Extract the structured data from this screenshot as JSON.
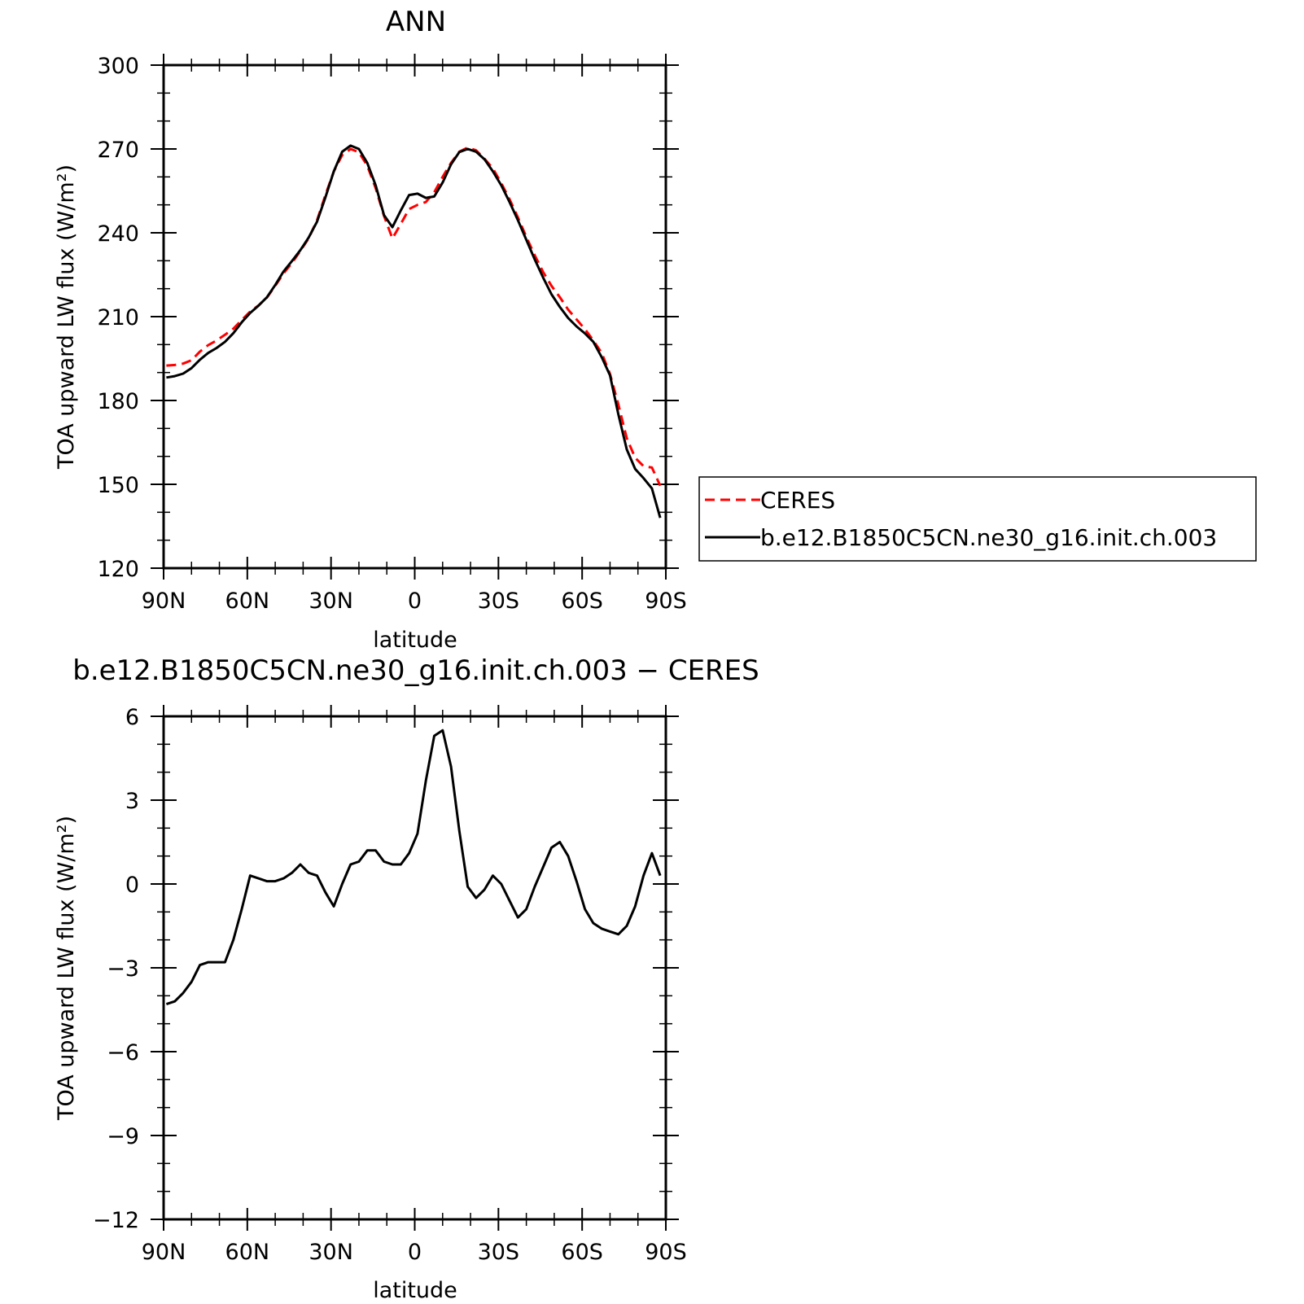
{
  "chart_data": [
    {
      "type": "line",
      "title": "ANN",
      "xlabel": "latitude",
      "ylabel": "TOA upward LW flux (W/m²)",
      "ylim": [
        120,
        300
      ],
      "yticks": [
        "120",
        "150",
        "180",
        "210",
        "240",
        "270",
        "300"
      ],
      "xlim": [
        90,
        -90
      ],
      "xticks": [
        "90N",
        "60N",
        "30N",
        "0",
        "30S",
        "60S",
        "90S"
      ],
      "grid": false,
      "legend_position": "right",
      "x": [
        89,
        86,
        83,
        80,
        77,
        74,
        71,
        68,
        65,
        62,
        59,
        56,
        53,
        50,
        47,
        44,
        41,
        38,
        35,
        32,
        29,
        26,
        23,
        20,
        17,
        14,
        11,
        8,
        5,
        2,
        -1,
        -4,
        -7,
        -10,
        -13,
        -16,
        -19,
        -22,
        -25,
        -28,
        -31,
        -34,
        -37,
        -40,
        -43,
        -46,
        -49,
        -52,
        -55,
        -58,
        -61,
        -64,
        -67,
        -70,
        -73,
        -76,
        -79,
        -82,
        -85,
        -88
      ],
      "series": [
        {
          "name": "CERES",
          "color": "#ff0000",
          "dash": "dashed",
          "values": [
            192.5,
            192.7,
            193.2,
            194.4,
            197.5,
            199.8,
            201.5,
            203.5,
            205.7,
            208.8,
            211.8,
            214.0,
            216.8,
            221.0,
            225.5,
            229.2,
            233.5,
            238.0,
            244.5,
            253.5,
            262.0,
            267.8,
            270.0,
            268.8,
            264.0,
            256.0,
            246.0,
            238.0,
            243.2,
            248.5,
            250.0,
            251.0,
            254.5,
            260.0,
            265.0,
            269.0,
            270.5,
            269.5,
            266.5,
            263.0,
            257.8,
            252.0,
            245.5,
            238.5,
            232.0,
            226.0,
            221.0,
            217.0,
            212.5,
            209.0,
            205.5,
            201.5,
            197.0,
            189.5,
            178.5,
            166.5,
            159.5,
            156.5,
            156.0,
            149.5
          ]
        },
        {
          "name": "b.e12.B1850C5CN.ne30_g16.init.ch.003",
          "color": "#000000",
          "dash": "solid",
          "values": [
            188.2,
            188.7,
            189.6,
            191.6,
            194.6,
            197.0,
            198.8,
            201.0,
            204.1,
            208.0,
            211.3,
            213.9,
            216.9,
            221.3,
            226.2,
            229.9,
            233.8,
            238.3,
            244.0,
            252.7,
            262.0,
            269.0,
            271.2,
            270.0,
            265.0,
            257.0,
            246.3,
            242.0,
            248.0,
            253.5,
            254.0,
            252.5,
            253.0,
            258.0,
            264.5,
            268.9,
            270.0,
            269.0,
            266.3,
            262.0,
            257.0,
            251.0,
            244.5,
            237.5,
            230.5,
            224.0,
            218.0,
            213.5,
            209.5,
            206.5,
            204.0,
            201.0,
            195.5,
            189.0,
            175.0,
            162.5,
            155.5,
            152.2,
            148.5,
            138.0
          ]
        }
      ]
    },
    {
      "type": "line",
      "title": "b.e12.B1850C5CN.ne30_g16.init.ch.003 − CERES",
      "xlabel": "latitude",
      "ylabel": "TOA upward LW flux (W/m²)",
      "ylim": [
        -12,
        6
      ],
      "yticks": [
        "−12",
        "−9",
        "−6",
        "−3",
        "0",
        "3",
        "6"
      ],
      "xlim": [
        90,
        -90
      ],
      "xticks": [
        "90N",
        "60N",
        "30N",
        "0",
        "30S",
        "60S",
        "90S"
      ],
      "grid": false,
      "x": [
        89,
        86,
        83,
        80,
        77,
        74,
        71,
        68,
        65,
        62,
        59,
        56,
        53,
        50,
        47,
        44,
        41,
        38,
        35,
        32,
        29,
        26,
        23,
        20,
        17,
        14,
        11,
        8,
        5,
        2,
        -1,
        -4,
        -7,
        -10,
        -13,
        -16,
        -19,
        -22,
        -25,
        -28,
        -31,
        -34,
        -37,
        -40,
        -43,
        -46,
        -49,
        -52,
        -55,
        -58,
        -61,
        -64,
        -67,
        -70,
        -73,
        -76,
        -79,
        -82,
        -85,
        -88
      ],
      "series": [
        {
          "color": "#000000",
          "dash": "solid",
          "values": [
            -4.3,
            -4.2,
            -3.9,
            -3.5,
            -2.9,
            -2.8,
            -2.8,
            -2.8,
            -2.0,
            -0.9,
            0.3,
            0.2,
            0.1,
            0.1,
            0.2,
            0.4,
            0.7,
            0.4,
            0.3,
            -0.3,
            -0.8,
            0.0,
            0.7,
            0.8,
            1.2,
            1.2,
            0.8,
            0.7,
            0.7,
            1.1,
            1.8,
            3.7,
            5.3,
            5.5,
            4.2,
            1.9,
            -0.1,
            -0.5,
            -0.2,
            0.3,
            0.0,
            -0.6,
            -1.2,
            -0.9,
            -0.1,
            0.6,
            1.3,
            1.5,
            1.0,
            0.1,
            -0.9,
            -1.4,
            -1.6,
            -1.7,
            -1.8,
            -1.5,
            -0.8,
            0.3,
            1.1,
            0.3
          ]
        }
      ]
    }
  ]
}
